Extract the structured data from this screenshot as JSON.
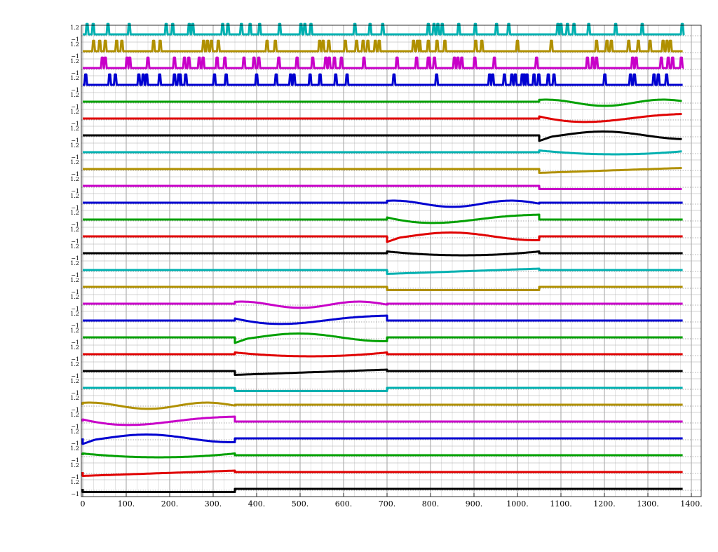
{
  "chart_data": {
    "type": "line",
    "title": "",
    "xlabel": "",
    "ylabel": "",
    "xlim": [
      0,
      1400
    ],
    "x_ticks": [
      "0",
      "100.",
      "200.",
      "300.",
      "400.",
      "500.",
      "600.",
      "700.",
      "800.",
      "900.",
      "1000.",
      "1100.",
      "1200.",
      "1300.",
      "1400."
    ],
    "band_top_label": "1.2",
    "band_bottom_label": "−1",
    "grid": true,
    "legend": "none",
    "series": [
      {
        "kind": "pulse",
        "color": "#00b0b0",
        "events": [
          10,
          24,
          58,
          107,
          192,
          207,
          245,
          253,
          322,
          334,
          365,
          385,
          407,
          453,
          502,
          511,
          525,
          626,
          661,
          690,
          795,
          808,
          817,
          827,
          865,
          903,
          952,
          980,
          1093,
          1100,
          1115,
          1130,
          1164,
          1226,
          1287,
          1379
        ]
      },
      {
        "kind": "pulse",
        "color": "#b09000",
        "events": [
          25,
          39,
          52,
          78,
          90,
          163,
          178,
          278,
          287,
          296,
          312,
          424,
          443,
          545,
          553,
          566,
          604,
          630,
          645,
          656,
          673,
          682,
          761,
          770,
          775,
          795,
          815,
          833,
          904,
          918,
          1000,
          1078,
          1182,
          1206,
          1216,
          1256,
          1278,
          1305,
          1335,
          1344,
          1352
        ]
      },
      {
        "kind": "pulse",
        "color": "#c800c8",
        "events": [
          45,
          52,
          102,
          108,
          150,
          211,
          234,
          244,
          268,
          277,
          309,
          327,
          371,
          394,
          405,
          451,
          493,
          529,
          559,
          567,
          579,
          595,
          647,
          723,
          768,
          795,
          797,
          809,
          855,
          863,
          872,
          902,
          947,
          1044,
          1161,
          1173,
          1182,
          1265,
          1273,
          1331,
          1347,
          1357,
          1377
        ]
      },
      {
        "kind": "pulse",
        "color": "#0000d0",
        "events": [
          7,
          62,
          75,
          129,
          139,
          147,
          177,
          211,
          221,
          224,
          237,
          303,
          330,
          400,
          445,
          478,
          486,
          523,
          546,
          582,
          608,
          716,
          814,
          936,
          943,
          970,
          987,
          995,
          1011,
          1016,
          1022,
          1038,
          1049,
          1071,
          1084,
          1201,
          1260,
          1269,
          1314,
          1324,
          1343
        ]
      },
      {
        "kind": "wave",
        "color": "#00a000",
        "phase": 0,
        "start": 1050,
        "end": 1400
      },
      {
        "kind": "wave",
        "color": "#e00000",
        "phase": 1,
        "start": 1050,
        "end": 1400
      },
      {
        "kind": "wave",
        "color": "#000000",
        "phase": 2,
        "start": 1050,
        "end": 1400
      },
      {
        "kind": "wave",
        "color": "#00b0b0",
        "phase": 3,
        "start": 1050,
        "end": 1400
      },
      {
        "kind": "wave",
        "color": "#b09000",
        "phase": 4,
        "start": 1050,
        "end": 1400
      },
      {
        "kind": "wave",
        "color": "#c800c8",
        "phase": 5,
        "start": 1050,
        "end": 1400
      },
      {
        "kind": "wave",
        "color": "#0000d0",
        "phase": 0,
        "start": 700,
        "end": 1050
      },
      {
        "kind": "wave",
        "color": "#00a000",
        "phase": 1,
        "start": 700,
        "end": 1050
      },
      {
        "kind": "wave",
        "color": "#e00000",
        "phase": 2,
        "start": 700,
        "end": 1050
      },
      {
        "kind": "wave",
        "color": "#000000",
        "phase": 3,
        "start": 700,
        "end": 1050
      },
      {
        "kind": "wave",
        "color": "#00b0b0",
        "phase": 4,
        "start": 700,
        "end": 1050
      },
      {
        "kind": "wave",
        "color": "#b09000",
        "phase": 5,
        "start": 700,
        "end": 1050
      },
      {
        "kind": "wave",
        "color": "#c800c8",
        "phase": 0,
        "start": 350,
        "end": 700
      },
      {
        "kind": "wave",
        "color": "#0000d0",
        "phase": 1,
        "start": 350,
        "end": 700
      },
      {
        "kind": "wave",
        "color": "#00a000",
        "phase": 2,
        "start": 350,
        "end": 700
      },
      {
        "kind": "wave",
        "color": "#e00000",
        "phase": 3,
        "start": 350,
        "end": 700
      },
      {
        "kind": "wave",
        "color": "#000000",
        "phase": 4,
        "start": 350,
        "end": 700
      },
      {
        "kind": "wave",
        "color": "#00b0b0",
        "phase": 5,
        "start": 350,
        "end": 700
      },
      {
        "kind": "wave",
        "color": "#b09000",
        "phase": 0,
        "start": 0,
        "end": 350
      },
      {
        "kind": "wave",
        "color": "#c800c8",
        "phase": 1,
        "start": 0,
        "end": 350
      },
      {
        "kind": "wave",
        "color": "#0000d0",
        "phase": 2,
        "start": 0,
        "end": 350
      },
      {
        "kind": "wave",
        "color": "#00a000",
        "phase": 3,
        "start": 0,
        "end": 350
      },
      {
        "kind": "wave",
        "color": "#e00000",
        "phase": 4,
        "start": 0,
        "end": 350
      },
      {
        "kind": "wave",
        "color": "#000000",
        "phase": 5,
        "start": 0,
        "end": 350
      }
    ]
  }
}
